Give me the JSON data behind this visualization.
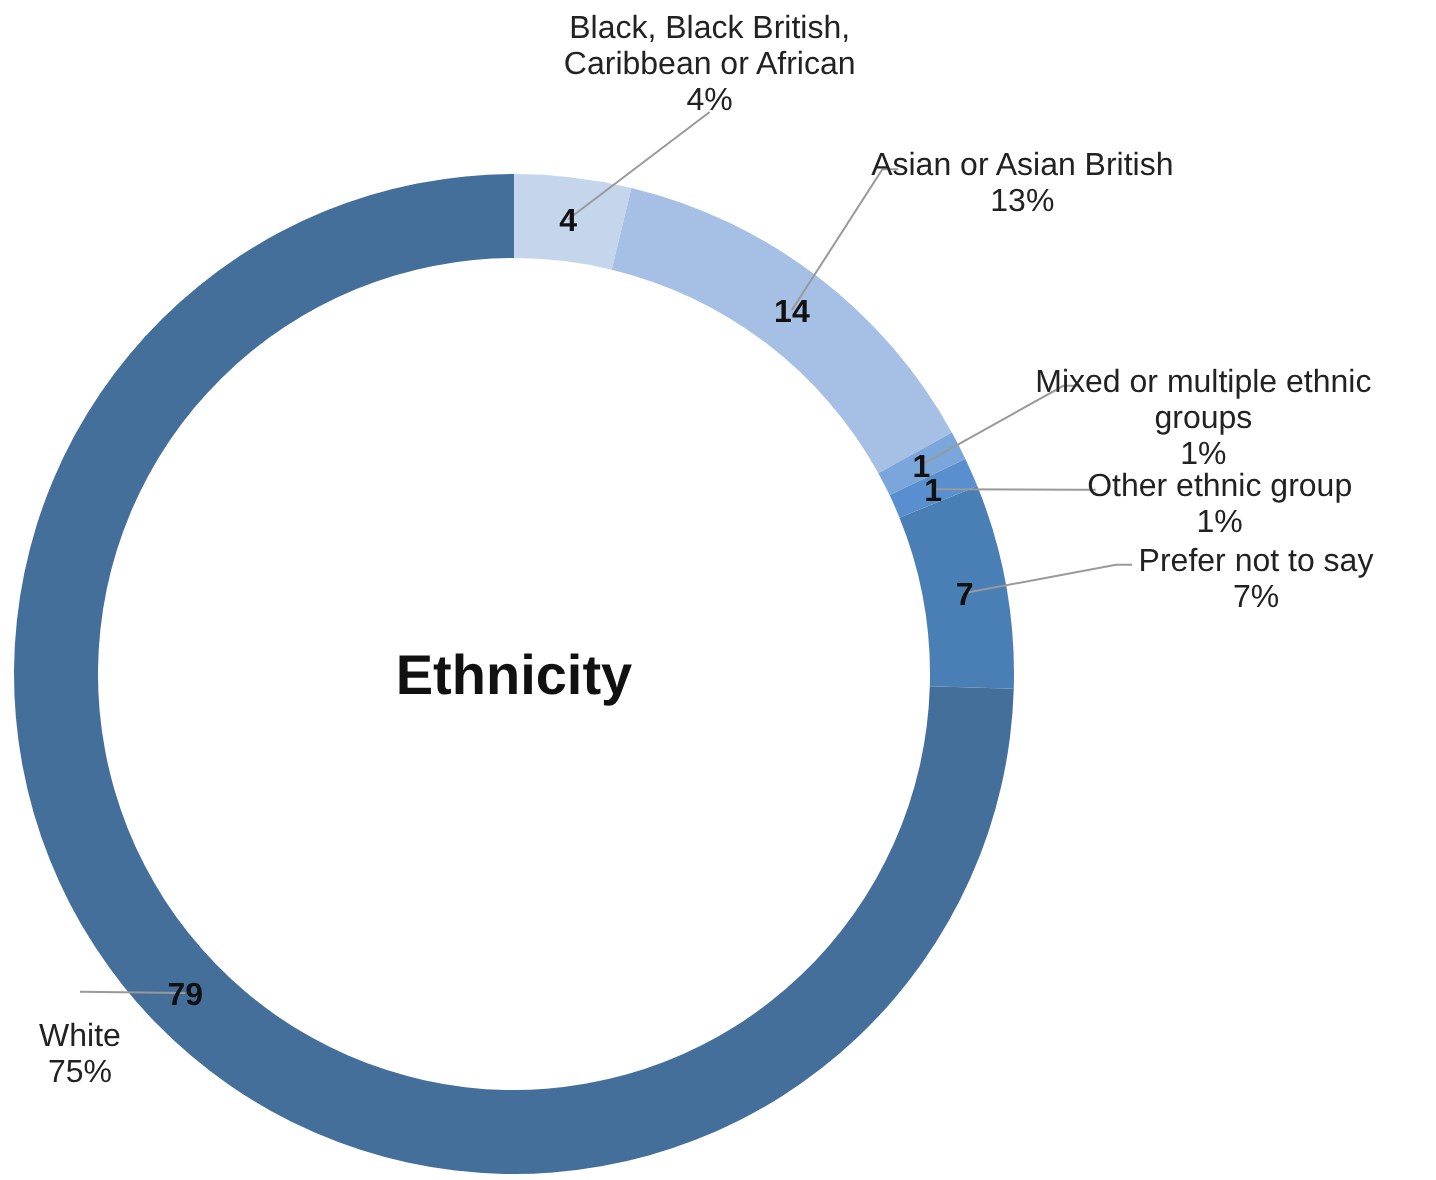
{
  "chart_data": {
    "type": "donut",
    "title": "Ethnicity",
    "categories": [
      "Black, Black British, Caribbean or African",
      "Asian or Asian British",
      "Mixed or multiple ethnic groups",
      "Other ethnic group",
      "Prefer not to say",
      "White"
    ],
    "values": [
      4,
      14,
      1,
      1,
      7,
      79
    ],
    "annotations": [
      "4%",
      "13%",
      "1%",
      "1%",
      "7%",
      "75%"
    ],
    "colors": [
      "#c5d6ec",
      "#a5c0e4",
      "#7ba6dc",
      "#5a8fcf",
      "#4a7fb6",
      "#456f9b"
    ],
    "data_labels": true
  }
}
